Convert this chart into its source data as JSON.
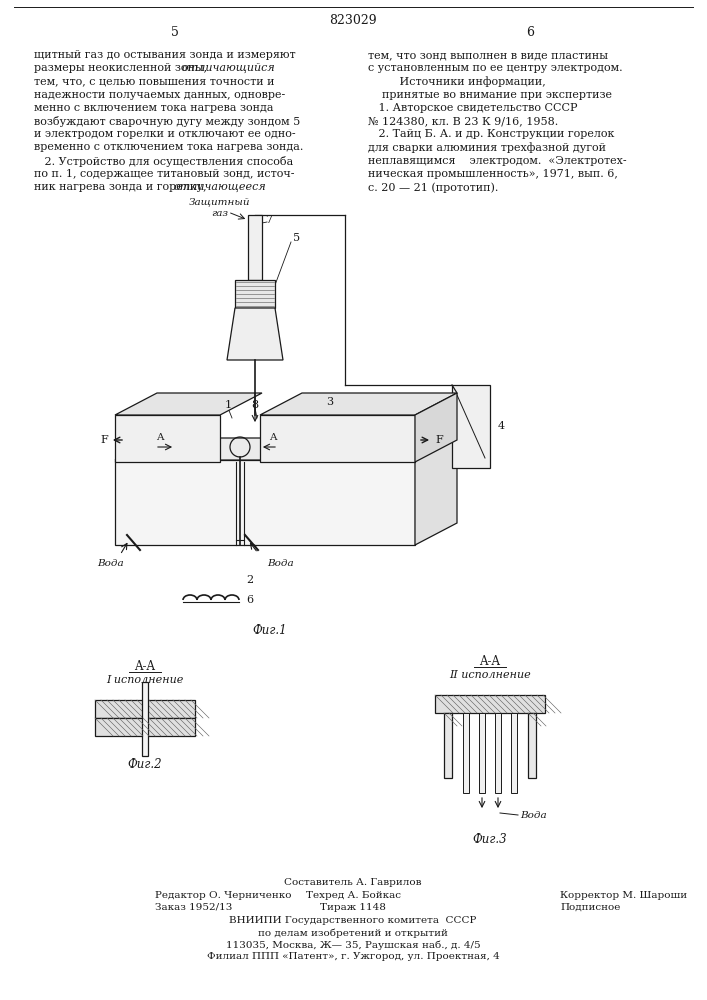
{
  "page_number": "823029",
  "col_left_num": "5",
  "col_right_num": "6",
  "bg": "#ffffff",
  "ink": "#1a1a1a",
  "left_col_lines": [
    [
      "щитный газ до остывания зонда и измеряют",
      false
    ],
    [
      "размеры неокисленной зоны, ",
      false
    ],
    [
      "отличающийся",
      true
    ],
    [
      "тем, что, с целью повышения точности и",
      false
    ],
    [
      "надежности получаемых данных, одновре-",
      false
    ],
    [
      "менно с включением тока нагрева зонда",
      false
    ],
    [
      "возбуждают сварочную дугу между зондом 5",
      false
    ],
    [
      "и электродом горелки и отключают ее одно-",
      false
    ],
    [
      "временно с отключением тока нагрева зонда.",
      false
    ],
    [
      "   2. Устройство для осуществления способа",
      false
    ],
    [
      "по п. 1, содержащее титановый зонд, источ-",
      false
    ],
    [
      "ник нагрева зонда и горелку, ",
      false
    ],
    [
      "отличающееся",
      true
    ]
  ],
  "right_col_lines": [
    "тем, что зонд выполнен в виде пластины",
    "с установленным по ее центру электродом.",
    "         Источники информации,",
    "    принятые во внимание при экспертизе",
    "   1. Авторское свидетельство СССР",
    "№ 124380, кл. В 23 К 9/16, 1958.",
    "   2. Тайц Б. А. и др. Конструкции горелок",
    "для сварки алюминия трехфазной дугой",
    "неплавящимся    электродом.  «Электротех-",
    "ническая промышленность», 1971, вып. 6,",
    "с. 20 — 21 (прототип)."
  ],
  "fig1_cap": "Фиг.1",
  "fig2_cap": "Фиг.2",
  "fig3_cap": "Фиг.3",
  "footer_comp": "Составитель А. Гаврилов",
  "footer_ed": "Редактор О. Черниченко",
  "footer_tech": "Техред А. Бойкас",
  "footer_corr": "Корректор М. Шароши",
  "footer_order": "Заказ 1952/13",
  "footer_tirazh": "Тираж 1148",
  "footer_podp": "Подписное",
  "footer_vniiipi": "ВНИИПИ Государственного комитета  СССР",
  "footer_po": "по делам изобретений и открытий",
  "footer_addr": "113035, Москва, Ж— 35, Раушская наб., д. 4/5",
  "footer_fil": "Филиал ППП «Патент», г. Ужгород, ул. Проектная, 4"
}
